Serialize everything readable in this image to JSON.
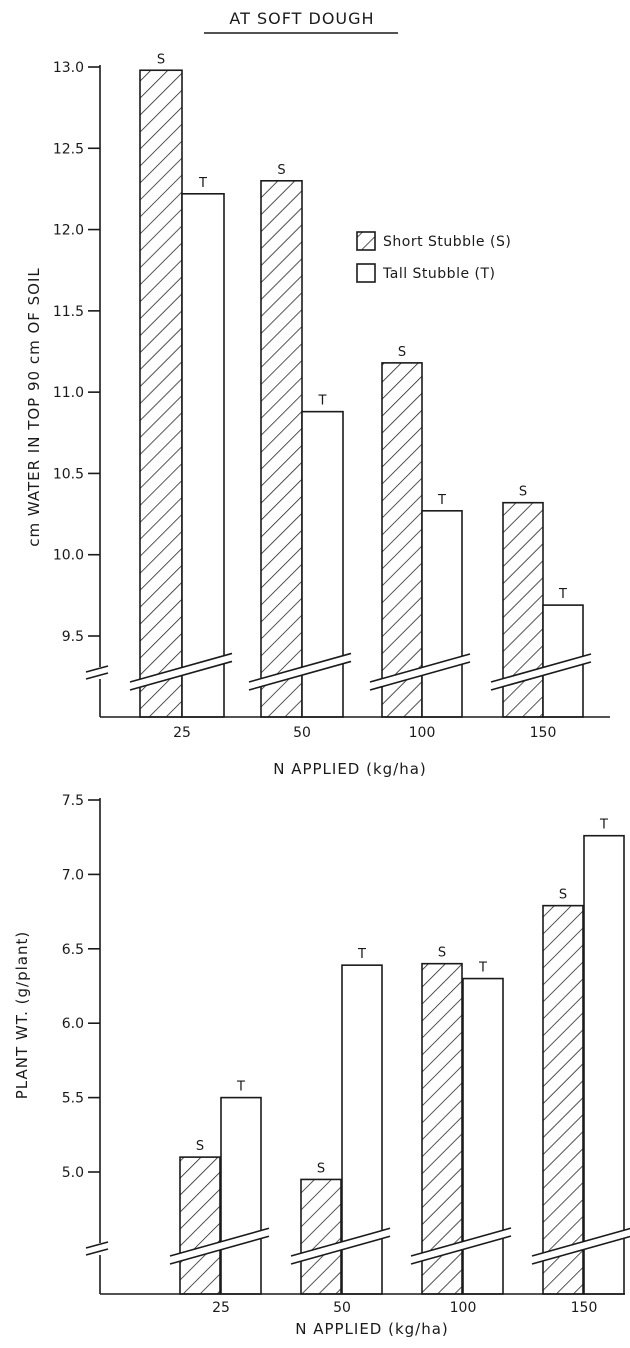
{
  "colors": {
    "ink": "#1a1a1a",
    "paper": "#ffffff"
  },
  "chart_data": [
    {
      "type": "bar",
      "title": "AT SOFT DOUGH",
      "xlabel": "N APPLIED (kg/ha)",
      "ylabel": "cm WATER IN TOP 90 cm OF SOIL",
      "categories": [
        "25",
        "50",
        "100",
        "150"
      ],
      "yticks": [
        "9.5",
        "10.0",
        "10.5",
        "11.0",
        "11.5",
        "12.0",
        "12.5",
        "13.0"
      ],
      "ylim": [
        9.0,
        13.0
      ],
      "axis_break": true,
      "legend_position": "right",
      "series": [
        {
          "name": "Short Stubble (S)",
          "label": "S",
          "pattern": "hatched",
          "values": [
            12.98,
            12.3,
            11.18,
            10.32
          ]
        },
        {
          "name": "Tall Stubble (T)",
          "label": "T",
          "pattern": "open",
          "values": [
            12.22,
            10.88,
            10.27,
            9.69
          ]
        }
      ]
    },
    {
      "type": "bar",
      "title": "",
      "xlabel": "N APPLIED (kg/ha)",
      "ylabel": "PLANT WT. (g/plant)",
      "categories": [
        "25",
        "50",
        "100",
        "150"
      ],
      "yticks": [
        "5.0",
        "5.5",
        "6.0",
        "6.5",
        "7.0",
        "7.5"
      ],
      "ylim": [
        4.5,
        7.5
      ],
      "axis_break": true,
      "series": [
        {
          "name": "",
          "label": "S",
          "pattern": "hatched",
          "values": [
            5.1,
            4.95,
            6.4,
            6.79
          ]
        },
        {
          "name": "",
          "label": "T",
          "pattern": "open",
          "values": [
            5.5,
            6.39,
            6.3,
            7.26
          ]
        }
      ]
    }
  ]
}
